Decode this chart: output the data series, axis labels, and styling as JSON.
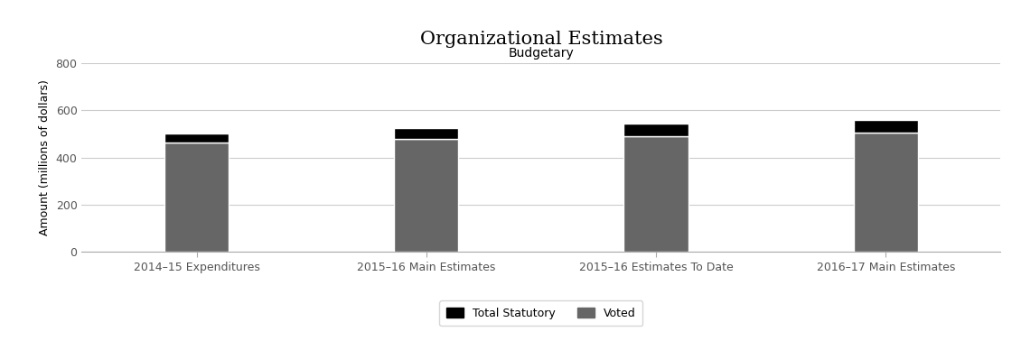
{
  "title": "Organizational Estimates",
  "subtitle": "Budgetary",
  "ylabel": "Amount (millions of dollars)",
  "categories": [
    "2014–15 Expenditures",
    "2015–16 Main Estimates",
    "2015–16 Estimates To Date",
    "2016–17 Main Estimates"
  ],
  "voted": [
    463,
    480,
    492,
    507
  ],
  "statutory": [
    38,
    45,
    50,
    52
  ],
  "voted_color": "#666666",
  "statutory_color": "#000000",
  "background_color": "#ffffff",
  "plot_background": "#ffffff",
  "ylim": [
    0,
    800
  ],
  "yticks": [
    0,
    200,
    400,
    600,
    800
  ],
  "grid_color": "#cccccc",
  "bar_width": 0.28,
  "legend_labels": [
    "Total Statutory",
    "Voted"
  ],
  "title_fontsize": 15,
  "subtitle_fontsize": 10,
  "axis_fontsize": 9,
  "tick_fontsize": 9
}
